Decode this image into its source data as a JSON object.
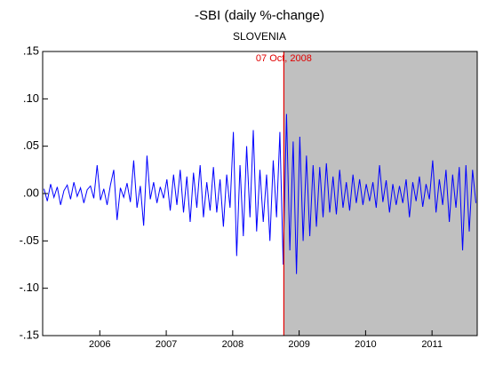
{
  "chart_data": {
    "type": "line",
    "title": "-SBI (daily %-change)",
    "subtitle": "SLOVENIA",
    "annotation": {
      "text": "07 Oct, 2008",
      "x": 2008.77,
      "color": "#e00000",
      "shade": "#c0c0c0"
    },
    "x": [
      2005.16,
      2005.21,
      2005.26,
      2005.31,
      2005.36,
      2005.41,
      2005.46,
      2005.51,
      2005.56,
      2005.61,
      2005.66,
      2005.71,
      2005.76,
      2005.81,
      2005.86,
      2005.91,
      2005.96,
      2006.01,
      2006.06,
      2006.11,
      2006.16,
      2006.21,
      2006.26,
      2006.31,
      2006.36,
      2006.41,
      2006.46,
      2006.51,
      2006.56,
      2006.61,
      2006.66,
      2006.71,
      2006.76,
      2006.81,
      2006.86,
      2006.91,
      2006.96,
      2007.01,
      2007.06,
      2007.11,
      2007.16,
      2007.21,
      2007.26,
      2007.31,
      2007.36,
      2007.41,
      2007.46,
      2007.51,
      2007.56,
      2007.61,
      2007.66,
      2007.71,
      2007.76,
      2007.81,
      2007.86,
      2007.91,
      2007.96,
      2008.01,
      2008.06,
      2008.11,
      2008.16,
      2008.21,
      2008.26,
      2008.31,
      2008.36,
      2008.41,
      2008.46,
      2008.51,
      2008.56,
      2008.61,
      2008.66,
      2008.71,
      2008.76,
      2008.81,
      2008.86,
      2008.91,
      2008.96,
      2009.01,
      2009.06,
      2009.11,
      2009.16,
      2009.21,
      2009.26,
      2009.31,
      2009.36,
      2009.41,
      2009.46,
      2009.51,
      2009.56,
      2009.61,
      2009.66,
      2009.71,
      2009.76,
      2009.81,
      2009.86,
      2009.91,
      2009.96,
      2010.01,
      2010.06,
      2010.11,
      2010.16,
      2010.21,
      2010.26,
      2010.31,
      2010.36,
      2010.41,
      2010.46,
      2010.51,
      2010.56,
      2010.61,
      2010.66,
      2010.71,
      2010.76,
      2010.81,
      2010.86,
      2010.91,
      2010.96,
      2011.01,
      2011.06,
      2011.11,
      2011.16,
      2011.21,
      2011.26,
      2011.31,
      2011.36,
      2011.41,
      2011.46,
      2011.51,
      2011.56,
      2011.61,
      2011.66
    ],
    "series": [
      {
        "color": "#0000ff",
        "values": [
          0.005,
          -0.008,
          0.01,
          -0.004,
          0.007,
          -0.012,
          0.003,
          0.009,
          -0.006,
          0.012,
          -0.003,
          0.006,
          -0.01,
          0.004,
          0.008,
          -0.005,
          0.03,
          -0.007,
          0.005,
          -0.012,
          0.009,
          0.025,
          -0.028,
          0.006,
          -0.004,
          0.011,
          -0.009,
          0.035,
          -0.015,
          0.008,
          -0.034,
          0.04,
          -0.006,
          0.012,
          -0.01,
          0.007,
          -0.005,
          0.015,
          -0.018,
          0.02,
          -0.012,
          0.025,
          -0.02,
          0.018,
          -0.03,
          0.022,
          -0.015,
          0.03,
          -0.025,
          0.012,
          -0.018,
          0.028,
          -0.02,
          0.015,
          -0.035,
          0.02,
          -0.015,
          0.065,
          -0.066,
          0.03,
          -0.045,
          0.05,
          -0.025,
          0.067,
          -0.04,
          0.025,
          -0.03,
          0.02,
          -0.05,
          0.035,
          -0.025,
          0.065,
          -0.075,
          0.084,
          -0.06,
          0.055,
          -0.085,
          0.06,
          -0.05,
          0.04,
          -0.045,
          0.03,
          -0.035,
          0.028,
          -0.025,
          0.032,
          -0.02,
          0.018,
          -0.022,
          0.025,
          -0.015,
          0.012,
          -0.018,
          0.02,
          -0.01,
          0.015,
          -0.012,
          0.01,
          -0.008,
          0.012,
          -0.015,
          0.03,
          -0.009,
          0.014,
          -0.02,
          0.01,
          -0.012,
          0.008,
          -0.01,
          0.015,
          -0.025,
          0.012,
          -0.008,
          0.018,
          -0.014,
          0.01,
          -0.006,
          0.035,
          -0.02,
          0.015,
          -0.012,
          0.025,
          -0.03,
          0.02,
          -0.015,
          0.028,
          -0.06,
          0.03,
          -0.04,
          0.025,
          -0.01
        ]
      }
    ],
    "xlim": [
      2005.14,
      2011.68
    ],
    "xticks": [
      2006,
      2007,
      2008,
      2009,
      2010,
      2011
    ],
    "ylim": [
      -0.15,
      0.15
    ],
    "yticks": [
      {
        "value": -0.15,
        "label": "-.15"
      },
      {
        "value": -0.1,
        "label": "-.10"
      },
      {
        "value": -0.05,
        "label": "-.05"
      },
      {
        "value": 0,
        "label": ".00"
      },
      {
        "value": 0.05,
        "label": ".05"
      },
      {
        "value": 0.1,
        "label": ".10"
      },
      {
        "value": 0.15,
        "label": ".15"
      }
    ]
  }
}
